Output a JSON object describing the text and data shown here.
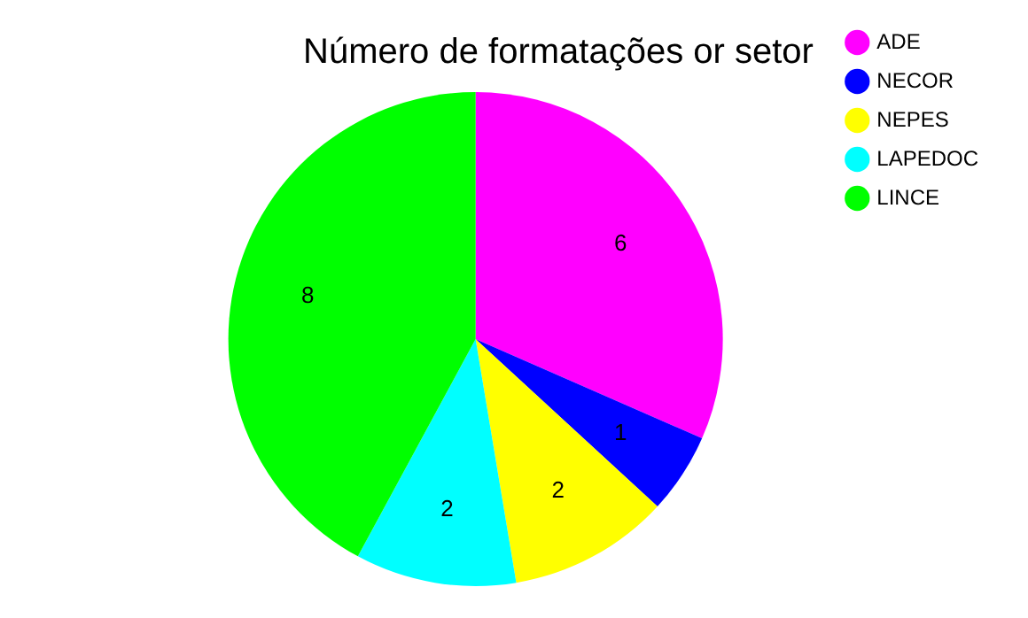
{
  "chart_data": {
    "type": "pie",
    "title": "Número de formatações or setor",
    "categories": [
      "ADE",
      "NECOR",
      "NEPES",
      "LAPEDOC",
      "LINCE"
    ],
    "values": [
      6,
      1,
      2,
      2,
      8
    ],
    "colors": [
      "#ff00ff",
      "#0000ff",
      "#ffff00",
      "#00ffff",
      "#00ff00"
    ],
    "data_labels": true,
    "legend": "top right"
  }
}
